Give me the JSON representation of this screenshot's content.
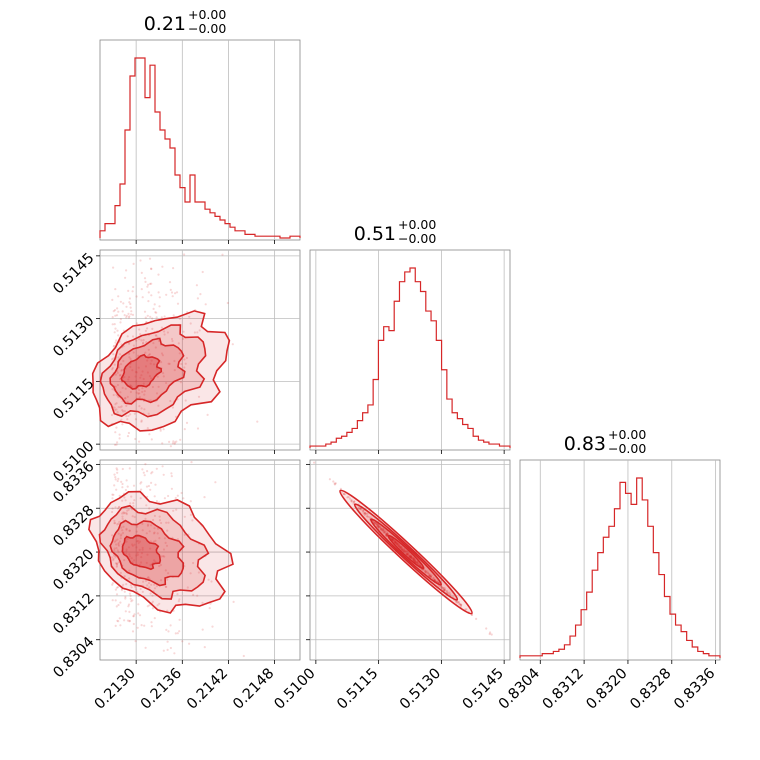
{
  "accent_color": "#d62728",
  "chart_data": {
    "type": "corner",
    "parameters": [
      "p0",
      "p1",
      "p2"
    ],
    "titles": [
      {
        "value": "0.21",
        "upper": "+0.00",
        "lower": "−0.00"
      },
      {
        "value": "0.51",
        "upper": "+0.00",
        "lower": "−0.00"
      },
      {
        "value": "0.83",
        "upper": "+0.00",
        "lower": "−0.00"
      }
    ],
    "axes": [
      {
        "range": [
          0.21253,
          0.21513
        ],
        "ticks": [
          0.213,
          0.2136,
          0.2142,
          0.2148
        ],
        "tick_labels": [
          "0.2130",
          "0.2136",
          "0.2142",
          "0.2148"
        ]
      },
      {
        "range": [
          0.50986,
          0.51464
        ],
        "ticks": [
          0.51,
          0.5115,
          0.513,
          0.5145
        ],
        "tick_labels": [
          "0.5100",
          "0.5115",
          "0.5130",
          "0.5145"
        ]
      },
      {
        "range": [
          0.83003,
          0.83368
        ],
        "ticks": [
          0.8304,
          0.8312,
          0.832,
          0.8328,
          0.8336
        ],
        "tick_labels": [
          "0.8304",
          "0.8312",
          "0.8320",
          "0.8328",
          "0.8336"
        ]
      }
    ],
    "grid": true,
    "histograms": [
      {
        "param": 0,
        "counts": [
          4,
          8,
          8,
          18,
          30,
          60,
          90,
          100,
          100,
          78,
          96,
          70,
          60,
          55,
          50,
          35,
          28,
          20,
          35,
          20,
          20,
          16,
          14,
          12,
          10,
          8,
          6,
          4,
          4,
          2,
          2,
          1,
          1,
          1,
          1,
          1,
          0,
          0,
          1,
          1
        ]
      },
      {
        "param": 1,
        "counts": [
          1,
          1,
          1,
          2,
          3,
          5,
          6,
          8,
          10,
          14,
          18,
          22,
          35,
          55,
          62,
          60,
          75,
          85,
          90,
          92,
          85,
          80,
          70,
          65,
          55,
          40,
          25,
          18,
          15,
          12,
          10,
          6,
          4,
          3,
          2,
          2,
          1,
          1
        ]
      },
      {
        "param": 2,
        "counts": [
          1,
          1,
          1,
          1,
          2,
          2,
          3,
          4,
          6,
          10,
          15,
          22,
          30,
          40,
          48,
          55,
          60,
          68,
          80,
          75,
          70,
          82,
          72,
          60,
          48,
          38,
          28,
          20,
          15,
          12,
          8,
          5,
          3,
          2,
          1,
          1
        ]
      }
    ],
    "scatter_panels": [
      {
        "x_param": 0,
        "y_param": 1,
        "shape": "curved-cloud"
      },
      {
        "x_param": 0,
        "y_param": 2,
        "shape": "curved-cloud"
      },
      {
        "x_param": 1,
        "y_param": 2,
        "shape": "narrow-anticorrelated-line"
      }
    ]
  }
}
